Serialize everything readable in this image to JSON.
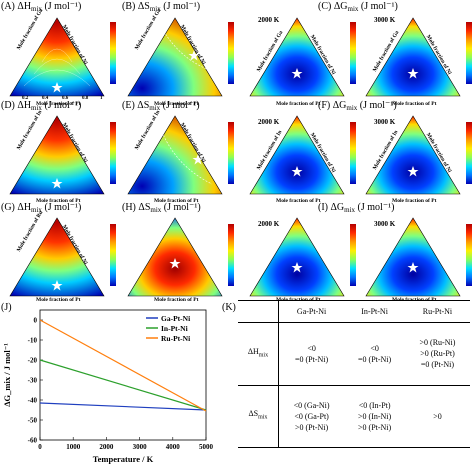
{
  "panels": {
    "A": {
      "label": "(A)",
      "qty": "ΔH",
      "sub": "mix",
      "unit": "(J mol⁻¹)"
    },
    "B": {
      "label": "(B)",
      "qty": "ΔS",
      "sub": "mix",
      "unit": "(J mol⁻¹)"
    },
    "C": {
      "label": "(C)",
      "qty": "ΔG",
      "sub": "mix",
      "unit": "(J mol⁻¹)"
    },
    "D": {
      "label": "(D)",
      "qty": "ΔH",
      "sub": "mix",
      "unit": "(J mol⁻¹)"
    },
    "E": {
      "label": "(E)",
      "qty": "ΔS",
      "sub": "mix",
      "unit": "(J mol⁻¹)"
    },
    "F": {
      "label": "(F)",
      "qty": "ΔG",
      "sub": "mix",
      "unit": "(J mol⁻¹)"
    },
    "G": {
      "label": "(G)",
      "qty": "ΔH",
      "sub": "mix",
      "unit": "(J mol⁻¹)"
    },
    "H": {
      "label": "(H)",
      "qty": "ΔS",
      "sub": "mix",
      "unit": "(J mol⁻¹)"
    },
    "I": {
      "label": "(I)",
      "qty": "ΔG",
      "sub": "mix",
      "unit": "(J mol⁻¹)"
    },
    "J": {
      "label": "(J)"
    },
    "K": {
      "label": "(K)"
    }
  },
  "temps": {
    "t2000": "2000 K",
    "t3000": "3000 K"
  },
  "axes": {
    "ga": "Mole fraction of Ga",
    "in": "Mole fraction of In",
    "ru": "Mole fraction of Ru",
    "ni": "Mole fraction of Ni",
    "pt": "Mole fraction of Pt"
  },
  "ticks": {
    "t02": "0.2",
    "t04": "0.4",
    "t06": "0.6",
    "t08": "0.8",
    "t1": "1"
  },
  "colors": {
    "ga_pt_ni": "#1f3fbf",
    "in_pt_ni": "#2ca02c",
    "ru_pt_ni": "#ff7f0e",
    "star": "#ffffff"
  },
  "chart_data": {
    "type": "line",
    "xlabel": "Temperature / K",
    "ylabel": "ΔG_mix / J mol⁻¹",
    "xlim": [
      0,
      5000
    ],
    "ylim": [
      -60,
      5
    ],
    "xticks": [
      0,
      1000,
      2000,
      3000,
      4000,
      5000
    ],
    "yticks": [
      0,
      -10,
      -20,
      -30,
      -40,
      -50,
      -60
    ],
    "legend_position": "top-right",
    "series": [
      {
        "name": "Ga-Pt-Ni",
        "color": "#1f3fbf",
        "x": [
          0,
          5000
        ],
        "y": [
          -41.5,
          -45
        ]
      },
      {
        "name": "In-Pt-Ni",
        "color": "#2ca02c",
        "x": [
          0,
          5000
        ],
        "y": [
          -20,
          -45
        ]
      },
      {
        "name": "Ru-Pt-Ni",
        "color": "#ff7f0e",
        "x": [
          0,
          5000
        ],
        "y": [
          0,
          -45.5
        ]
      }
    ]
  },
  "table": {
    "headers": [
      "Ga-Pt-Ni",
      "In-Pt-Ni",
      "Ru-Pt-Ni"
    ],
    "rows": [
      {
        "label": "ΔH",
        "sub": "mix",
        "cells": [
          [
            "<0",
            "=0 (Pt-Ni)"
          ],
          [
            "<0",
            "=0 (Pt-Ni)"
          ],
          [
            ">0 (Ru-Ni)",
            ">0 (Ru-Pt)",
            "=0 (Pt-Ni)"
          ]
        ]
      },
      {
        "label": "ΔS",
        "sub": "mix",
        "cells": [
          [
            "<0 (Ga-Ni)",
            "<0 (Ga-Pt)",
            ">0 (Pt-Ni)"
          ],
          [
            "<0 (In-Pt)",
            ">0 (In-Ni)",
            ">0 (Pt-Ni)"
          ],
          [
            ">0"
          ]
        ]
      }
    ]
  }
}
